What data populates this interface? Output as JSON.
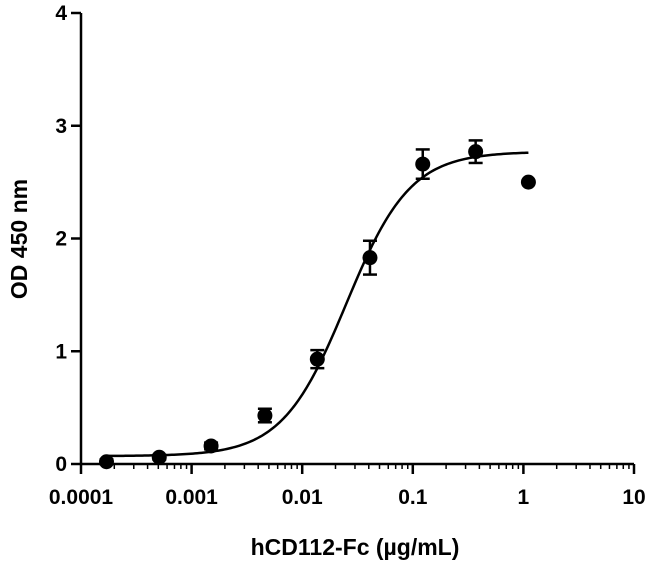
{
  "chart_data": {
    "type": "scatter",
    "title": "",
    "xlabel": "hCD112-Fc (µg/mL)",
    "ylabel": "OD 450 nm",
    "x_scale": "log",
    "xlim": [
      0.0001,
      10
    ],
    "ylim": [
      0,
      4
    ],
    "x_tick_labels": [
      "0.0001",
      "0.001",
      "0.01",
      "0.1",
      "1",
      "10"
    ],
    "x_ticks": [
      0.0001,
      0.001,
      0.01,
      0.1,
      1,
      10
    ],
    "y_tick_labels": [
      "0",
      "1",
      "2",
      "3",
      "4"
    ],
    "y_ticks": [
      0,
      1,
      2,
      3,
      4
    ],
    "grid": false,
    "colors": {
      "marker": "#000000",
      "curve": "#000000",
      "axis": "#000000"
    },
    "points": [
      {
        "x": 0.00017,
        "y": 0.02,
        "err": 0.02
      },
      {
        "x": 0.00051,
        "y": 0.06,
        "err": 0.02
      },
      {
        "x": 0.0015,
        "y": 0.16,
        "err": 0.03
      },
      {
        "x": 0.0046,
        "y": 0.43,
        "err": 0.06
      },
      {
        "x": 0.0137,
        "y": 0.93,
        "err": 0.08
      },
      {
        "x": 0.041,
        "y": 1.83,
        "err": 0.15
      },
      {
        "x": 0.123,
        "y": 2.66,
        "err": 0.13
      },
      {
        "x": 0.37,
        "y": 2.77,
        "err": 0.1
      },
      {
        "x": 1.11,
        "y": 2.5,
        "err": 0.0
      }
    ],
    "fit": {
      "bottom": 0.07,
      "top": 2.77,
      "ec50": 0.025,
      "hill": 1.5,
      "x_start": 0.00017,
      "x_end": 1.11
    }
  }
}
